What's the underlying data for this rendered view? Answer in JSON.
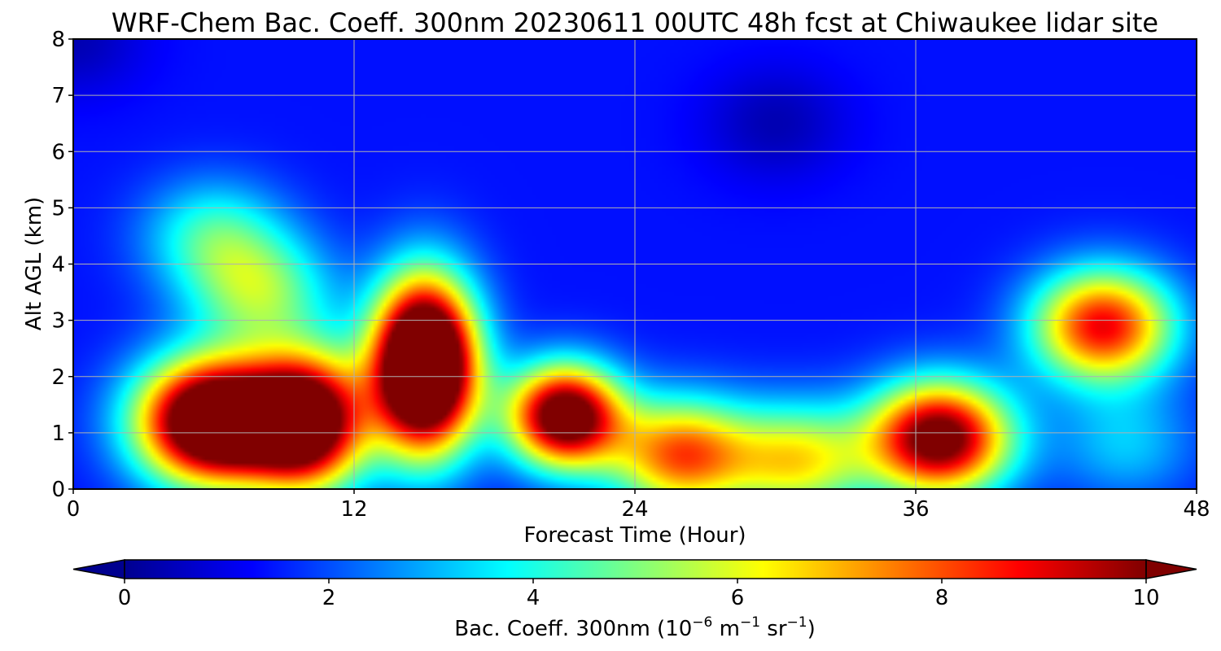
{
  "chart_data": {
    "type": "heatmap",
    "title": "WRF-Chem Bac. Coeff. 300nm  20230611 00UTC 48h fcst at Chiwaukee lidar site",
    "xlabel": "Forecast Time (Hour)",
    "ylabel": "Alt AGL (km)",
    "xlim": [
      0,
      48
    ],
    "ylim": [
      0,
      8
    ],
    "x_ticks": [
      "0",
      "12",
      "24",
      "36",
      "48"
    ],
    "y_ticks": [
      "0",
      "1",
      "2",
      "3",
      "4",
      "5",
      "6",
      "7",
      "8"
    ],
    "grid": true,
    "colormap": "jet",
    "colorbar": {
      "orientation": "horizontal",
      "position": "bottom",
      "range": [
        0,
        10
      ],
      "extend": "both",
      "ticks": [
        "0",
        "2",
        "4",
        "6",
        "8",
        "10"
      ],
      "label_main": "Bac. Coeff. 300nm  (10",
      "label_exp1": "−6",
      "label_mid": " m",
      "label_exp2": "−1",
      "label_mid2": " sr",
      "label_exp3": "−1",
      "label_end": ")"
    },
    "field": {
      "background": 1.4,
      "features": [
        {
          "x": 0,
          "y": 8,
          "amp": -0.9
        },
        {
          "x": 6,
          "y": 1.2,
          "amp": 12,
          "sx": 3.2,
          "sy": 1.1
        },
        {
          "x": 10,
          "y": 1.2,
          "amp": 10,
          "sx": 2.5,
          "sy": 1.2
        },
        {
          "x": 15,
          "y": 2.2,
          "amp": 14,
          "sx": 2.2,
          "sy": 1.5
        },
        {
          "x": 21,
          "y": 1.3,
          "amp": 10,
          "sx": 2.4,
          "sy": 0.9
        },
        {
          "x": 6,
          "y": 4.5,
          "amp": 2.8
        },
        {
          "x": 8,
          "y": 3.5,
          "amp": 3.5
        },
        {
          "x": 26,
          "y": 0.6,
          "amp": 6.5
        },
        {
          "x": 31,
          "y": 0.5,
          "amp": 4.8
        },
        {
          "x": 37,
          "y": 0.9,
          "amp": 9.5
        },
        {
          "x": 44,
          "y": 2.9,
          "amp": 7.5
        },
        {
          "x": 45,
          "y": 0.8,
          "amp": 1.8
        },
        {
          "x": 30,
          "y": 6.5,
          "amp": -0.9
        }
      ]
    }
  }
}
